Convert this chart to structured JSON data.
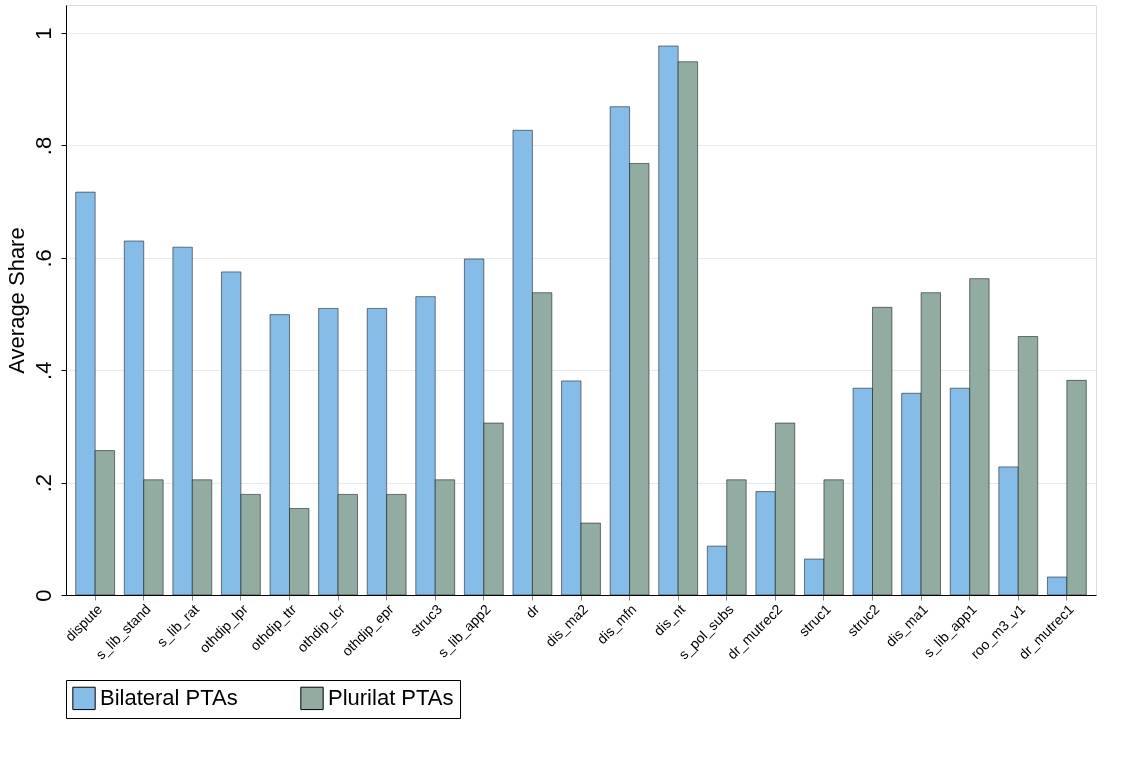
{
  "chart_data": {
    "type": "bar",
    "ylabel": "Average Share",
    "categories": [
      "dispute",
      "s_lib_stand",
      "s_lib_rat",
      "othdip_lpr",
      "othdip_ttr",
      "othdip_lcr",
      "othdip_epr",
      "struc3",
      "s_lib_app2",
      "dr",
      "dis_ma2",
      "dis_mfn",
      "dis_nt",
      "s_pol_subs",
      "dr_mutrec2",
      "struc1",
      "struc2",
      "dis_ma1",
      "s_lib_app1",
      "roo_m3_v1",
      "dr_mutrec1"
    ],
    "series": [
      {
        "name": "Bilateral PTAs",
        "color": "#86bde8",
        "values": [
          0.717,
          0.63,
          0.619,
          0.575,
          0.499,
          0.51,
          0.51,
          0.531,
          0.598,
          0.827,
          0.381,
          0.869,
          0.977,
          0.087,
          0.184,
          0.064,
          0.368,
          0.359,
          0.368,
          0.228,
          0.032
        ]
      },
      {
        "name": "Plurilat PTAs",
        "color": "#92aca2",
        "values": [
          0.257,
          0.205,
          0.205,
          0.179,
          0.154,
          0.179,
          0.179,
          0.205,
          0.306,
          0.538,
          0.128,
          0.768,
          0.949,
          0.205,
          0.306,
          0.205,
          0.512,
          0.538,
          0.563,
          0.46,
          0.382
        ]
      }
    ],
    "ylim": [
      0,
      1.05
    ],
    "yticks": [
      0,
      {
        "value": 0.2,
        "label": ".2"
      },
      {
        "value": 0.4,
        "label": ".4"
      },
      {
        "value": 0.6,
        "label": ".6"
      },
      {
        "value": 0.8,
        "label": ".8"
      },
      1
    ],
    "grid": "y",
    "legend": "bottom"
  }
}
